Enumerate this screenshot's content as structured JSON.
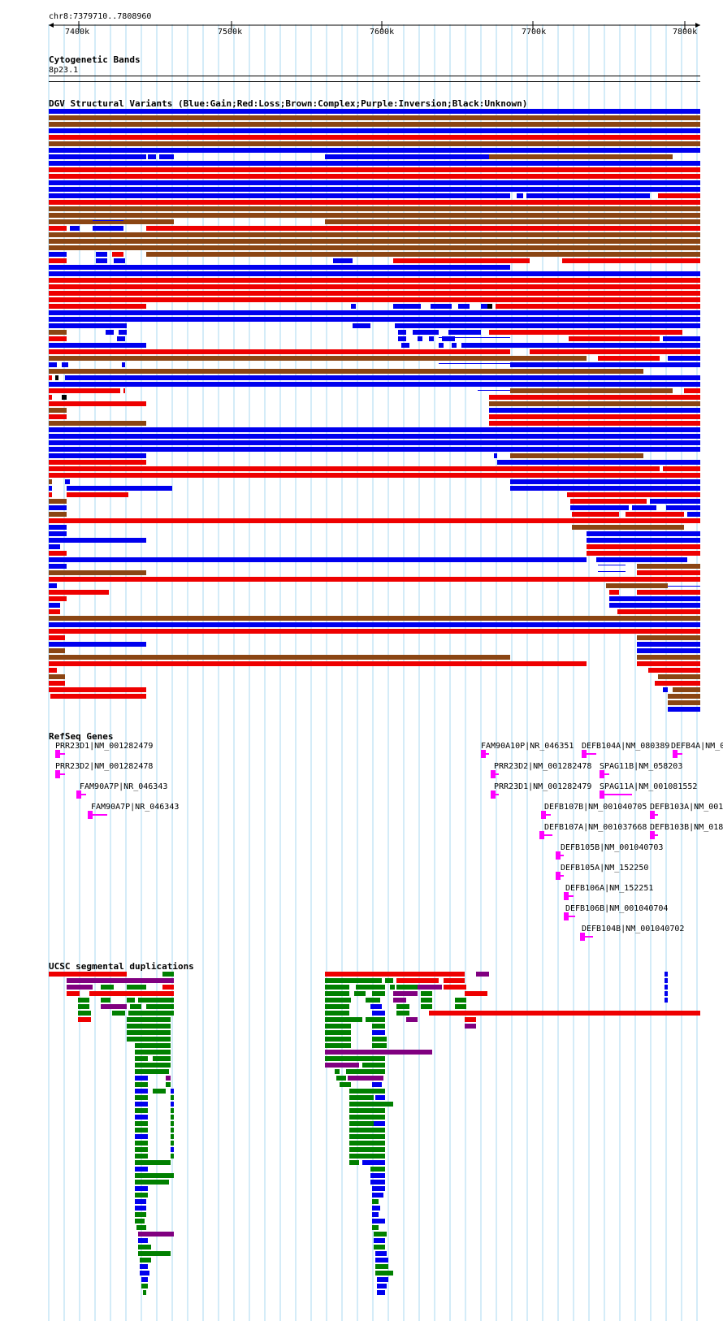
{
  "ruler": {
    "location": "chr8:7379710..7808960",
    "ticks": [
      "7400k",
      "7500k",
      "7600k",
      "7700k",
      "7800k"
    ]
  },
  "tracks": {
    "cytoband": {
      "title": "Cytogenetic Bands",
      "band": "8p23.1"
    },
    "dgv": {
      "title": "DGV Structural Variants (Blue:Gain;Red:Loss;Brown:Complex;Purple:Inversion;Black:Unknown)"
    },
    "refseq": {
      "title": "RefSeq Genes",
      "genes": [
        "PRR23D1|NM_001282479",
        "PRR23D2|NM_001282478",
        "FAM90A7P|NR_046343",
        "FAM90A7P|NR_046343",
        "FAM90A10P|NR_046351",
        "DEFB104A|NM_080389",
        "DEFB4A|NM_0",
        "PRR23D2|NM_001282478",
        "SPAG11B|NM_058203",
        "PRR23D1|NM_001282479",
        "SPAG11A|NM_001081552",
        "DEFB107B|NM_001040705",
        "DEFB103A|NM_001",
        "DEFB107A|NM_001037668",
        "DEFB103B|NM_018",
        "DEFB105B|NM_001040703",
        "DEFB105A|NM_152250",
        "DEFB106A|NM_152251",
        "DEFB106B|NM_001040704",
        "DEFB104B|NM_001040702"
      ]
    },
    "segdup": {
      "title": "UCSC segmental duplications"
    }
  },
  "colors": {
    "gain": "#0000ee",
    "loss": "#ee0000",
    "complex": "#8b4513",
    "inversion": "#800080",
    "unknown": "#000000",
    "gene": "#ff00ff",
    "segdup_green": "#008000",
    "grid": "#a8d8f0"
  }
}
